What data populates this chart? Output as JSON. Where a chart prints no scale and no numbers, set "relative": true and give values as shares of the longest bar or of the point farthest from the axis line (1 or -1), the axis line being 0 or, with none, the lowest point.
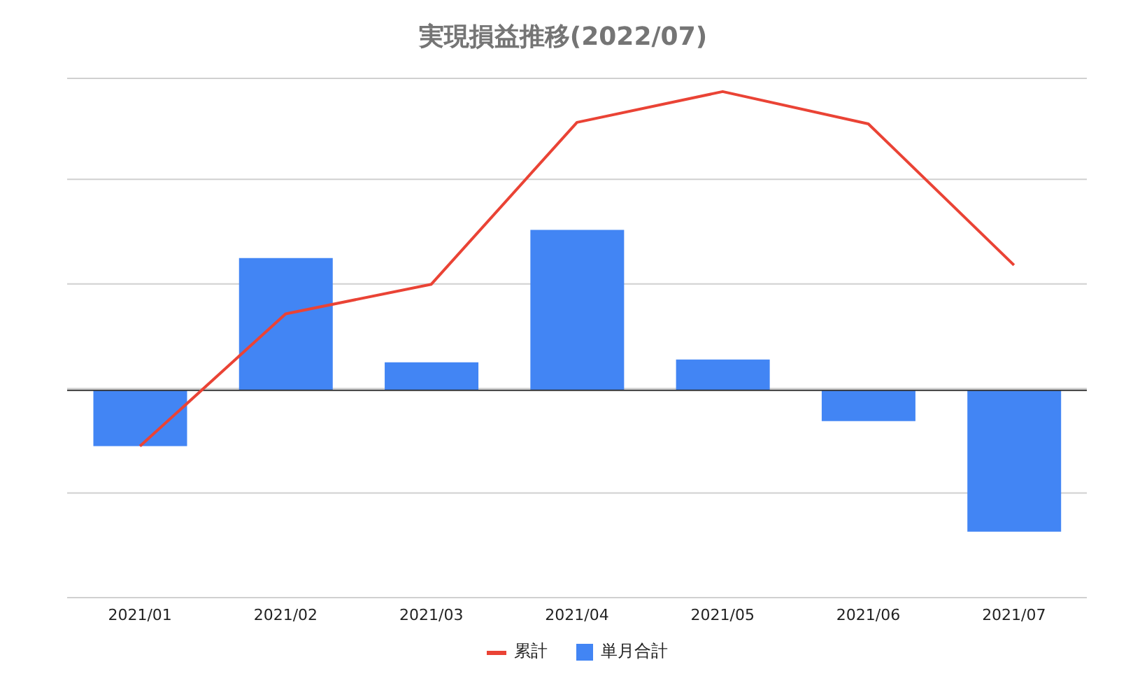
{
  "chart_data": {
    "type": "bar",
    "title": "実現損益推移(2022/07)",
    "relative": true,
    "grid": "y",
    "legend": "bottom",
    "categories": [
      "2021/01",
      "2021/02",
      "2021/03",
      "2021/04",
      "2021/05",
      "2021/06",
      "2021/07"
    ],
    "series": [
      {
        "name": "累計",
        "type": "line",
        "color": "#ea4335",
        "values": [
          -0.187,
          0.256,
          0.355,
          0.897,
          1,
          0.892,
          0.419
        ]
      },
      {
        "name": "単月合計",
        "color": "#4285f4",
        "values": [
          -0.187,
          0.443,
          0.094,
          0.537,
          0.103,
          -0.103,
          -0.473
        ]
      }
    ]
  }
}
